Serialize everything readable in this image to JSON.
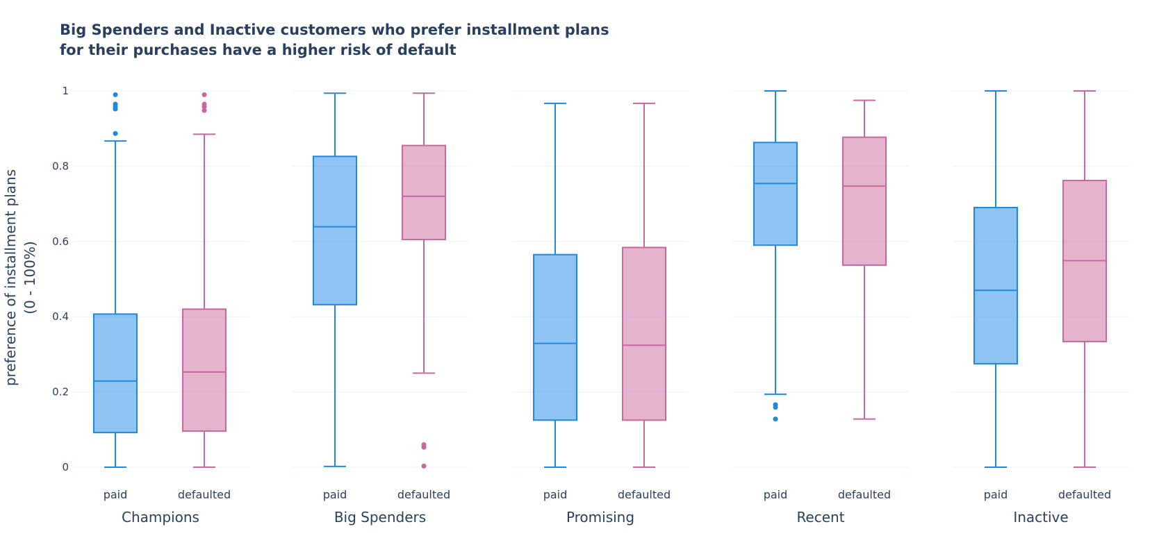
{
  "chart_data": {
    "type": "box",
    "title_lines": [
      "Big Spenders and Inactive customers who prefer installment plans",
      "for their purchases have a higher risk of default"
    ],
    "ylabel_lines": [
      "preference of installment plans",
      "(0 - 100%)"
    ],
    "ylim": [
      0,
      1
    ],
    "yticks": [
      0,
      0.2,
      0.4,
      0.6,
      0.8,
      1
    ],
    "ytick_labels": [
      "0",
      "0.2",
      "0.4",
      "0.6",
      "0.8",
      "1"
    ],
    "categories": [
      "paid",
      "defaulted"
    ],
    "colors": {
      "paid": "#1e88e5",
      "defaulted": "#c9679d"
    },
    "grid": true,
    "segments": [
      {
        "name": "Champions",
        "boxes": [
          {
            "category": "paid",
            "min": 0.0,
            "q1": 0.092,
            "median": 0.229,
            "q3": 0.407,
            "max": 0.867,
            "outliers": [
              0.887,
              0.952,
              0.958,
              0.965,
              0.99
            ]
          },
          {
            "category": "defaulted",
            "min": 0.0,
            "q1": 0.096,
            "median": 0.253,
            "q3": 0.42,
            "max": 0.885,
            "outliers": [
              0.948,
              0.958,
              0.965,
              0.99
            ]
          }
        ]
      },
      {
        "name": "Big Spenders",
        "boxes": [
          {
            "category": "paid",
            "min": 0.002,
            "q1": 0.432,
            "median": 0.639,
            "q3": 0.826,
            "max": 0.994,
            "outliers": []
          },
          {
            "category": "defaulted",
            "min": 0.25,
            "q1": 0.605,
            "median": 0.72,
            "q3": 0.855,
            "max": 0.994,
            "outliers": [
              0.003,
              0.053,
              0.06
            ]
          }
        ]
      },
      {
        "name": "Promising",
        "boxes": [
          {
            "category": "paid",
            "min": 0.0,
            "q1": 0.125,
            "median": 0.329,
            "q3": 0.565,
            "max": 0.967,
            "outliers": []
          },
          {
            "category": "defaulted",
            "min": 0.0,
            "q1": 0.125,
            "median": 0.324,
            "q3": 0.584,
            "max": 0.967,
            "outliers": []
          }
        ]
      },
      {
        "name": "Recent",
        "boxes": [
          {
            "category": "paid",
            "min": 0.194,
            "q1": 0.59,
            "median": 0.754,
            "q3": 0.863,
            "max": 1.0,
            "outliers": [
              0.128,
              0.159,
              0.166
            ]
          },
          {
            "category": "defaulted",
            "min": 0.128,
            "q1": 0.537,
            "median": 0.747,
            "q3": 0.877,
            "max": 0.975,
            "outliers": []
          }
        ]
      },
      {
        "name": "Inactive",
        "boxes": [
          {
            "category": "paid",
            "min": 0.0,
            "q1": 0.275,
            "median": 0.47,
            "q3": 0.69,
            "max": 1.0,
            "outliers": []
          },
          {
            "category": "defaulted",
            "min": 0.0,
            "q1": 0.334,
            "median": 0.549,
            "q3": 0.762,
            "max": 1.0,
            "outliers": []
          }
        ]
      }
    ]
  }
}
